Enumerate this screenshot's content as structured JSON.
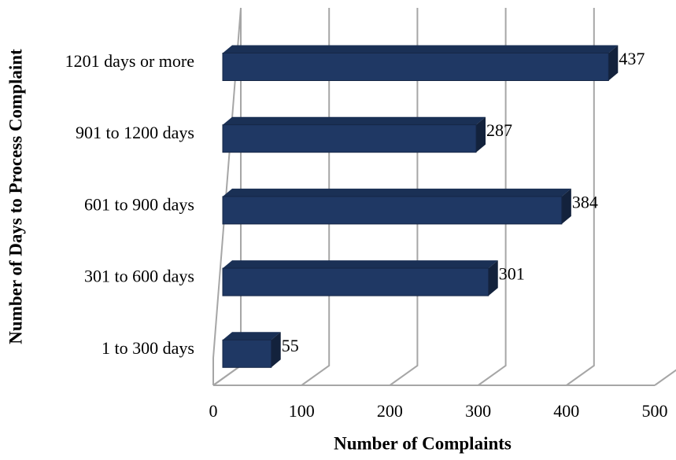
{
  "chart_data": {
    "type": "bar3d_horizontal",
    "x_label": "Number of Complaints",
    "y_label": "Number of Days to Process Complaint",
    "categories": [
      "1201 days or more",
      "901 to 1200 days",
      "601 to 900 days",
      "301 to 600 days",
      "1 to 300 days"
    ],
    "values": [
      437,
      287,
      384,
      301,
      55
    ],
    "color": "#1f3864",
    "xlim": [
      0,
      500
    ],
    "xticks": [
      0,
      100,
      200,
      300,
      400,
      500
    ],
    "grid": true
  }
}
